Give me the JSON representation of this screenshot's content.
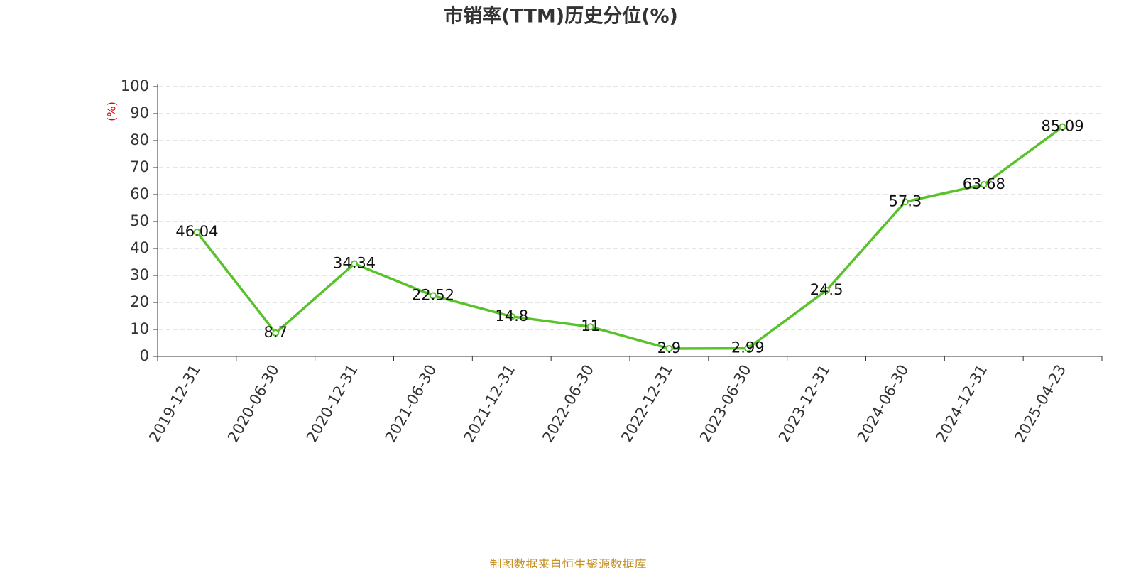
{
  "chart_data": {
    "type": "line",
    "title": "市销率(TTM)历史分位(%)",
    "y_label": "(%)",
    "source": "制图数据来自恒生聚源数据库",
    "categories": [
      "2019-12-31",
      "2020-06-30",
      "2020-12-31",
      "2021-06-30",
      "2021-12-31",
      "2022-06-30",
      "2022-12-31",
      "2023-06-30",
      "2023-12-31",
      "2024-06-30",
      "2024-12-31",
      "2025-04-23"
    ],
    "series": [
      {
        "name": "市销率(TTM)历史分位",
        "color": "#58c22a",
        "values": [
          46.04,
          8.7,
          34.34,
          22.52,
          14.8,
          11,
          2.9,
          2.99,
          24.5,
          57.3,
          63.68,
          85.09
        ]
      }
    ],
    "ylim": [
      0,
      100
    ],
    "yticks": [
      0,
      10,
      20,
      30,
      40,
      50,
      60,
      70,
      80,
      90,
      100
    ],
    "grid": true
  }
}
